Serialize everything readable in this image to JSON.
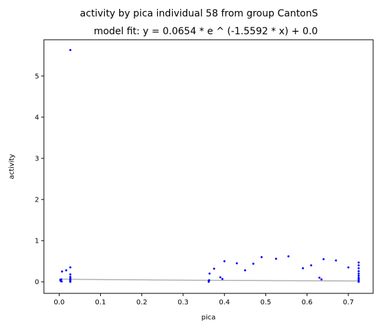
{
  "chart_data": {
    "type": "scatter",
    "title": "activity by pica individual 58 from group CantonS",
    "subtitle": "model fit: y = 0.0654 * e ^ (-1.5592 * x) + 0.0",
    "xlabel": "pica",
    "ylabel": "activity",
    "xlim": [
      -0.037,
      0.76
    ],
    "ylim": [
      -0.28,
      5.88
    ],
    "x_ticks": [
      0.0,
      0.1,
      0.2,
      0.3,
      0.4,
      0.5,
      0.6,
      0.7
    ],
    "x_tick_labels": [
      "0.0",
      "0.1",
      "0.2",
      "0.3",
      "0.4",
      "0.5",
      "0.6",
      "0.7"
    ],
    "y_ticks": [
      0,
      1,
      2,
      3,
      4,
      5
    ],
    "y_tick_labels": [
      "0",
      "1",
      "2",
      "3",
      "4",
      "5"
    ],
    "grid": false,
    "point_color": "#0000ff",
    "fit_color": "#b0b0b0",
    "fit": {
      "a": 0.0654,
      "b": -1.5592,
      "c": 0.0,
      "x_range": [
        0.0,
        0.725
      ]
    },
    "points": [
      {
        "x": 0.003,
        "y": 0.03
      },
      {
        "x": 0.003,
        "y": 0.05
      },
      {
        "x": 0.004,
        "y": 0.02
      },
      {
        "x": 0.005,
        "y": 0.06
      },
      {
        "x": 0.006,
        "y": 0.01
      },
      {
        "x": 0.007,
        "y": 0.25
      },
      {
        "x": 0.017,
        "y": 0.28
      },
      {
        "x": 0.027,
        "y": 5.63
      },
      {
        "x": 0.027,
        "y": 0.35
      },
      {
        "x": 0.027,
        "y": 0.18
      },
      {
        "x": 0.027,
        "y": 0.12
      },
      {
        "x": 0.027,
        "y": 0.08
      },
      {
        "x": 0.027,
        "y": 0.05
      },
      {
        "x": 0.027,
        "y": 0.03
      },
      {
        "x": 0.027,
        "y": 0.01
      },
      {
        "x": 0.027,
        "y": 0.0
      },
      {
        "x": 0.362,
        "y": 0.0
      },
      {
        "x": 0.362,
        "y": 0.02
      },
      {
        "x": 0.363,
        "y": 0.04
      },
      {
        "x": 0.364,
        "y": 0.2
      },
      {
        "x": 0.375,
        "y": 0.32
      },
      {
        "x": 0.39,
        "y": 0.11
      },
      {
        "x": 0.395,
        "y": 0.07
      },
      {
        "x": 0.4,
        "y": 0.5
      },
      {
        "x": 0.43,
        "y": 0.45
      },
      {
        "x": 0.45,
        "y": 0.28
      },
      {
        "x": 0.47,
        "y": 0.44
      },
      {
        "x": 0.49,
        "y": 0.6
      },
      {
        "x": 0.525,
        "y": 0.56
      },
      {
        "x": 0.555,
        "y": 0.62
      },
      {
        "x": 0.59,
        "y": 0.33
      },
      {
        "x": 0.61,
        "y": 0.4
      },
      {
        "x": 0.63,
        "y": 0.1
      },
      {
        "x": 0.635,
        "y": 0.06
      },
      {
        "x": 0.64,
        "y": 0.55
      },
      {
        "x": 0.67,
        "y": 0.52
      },
      {
        "x": 0.7,
        "y": 0.35
      },
      {
        "x": 0.725,
        "y": 0.47
      },
      {
        "x": 0.725,
        "y": 0.4
      },
      {
        "x": 0.725,
        "y": 0.33
      },
      {
        "x": 0.725,
        "y": 0.26
      },
      {
        "x": 0.725,
        "y": 0.2
      },
      {
        "x": 0.725,
        "y": 0.15
      },
      {
        "x": 0.725,
        "y": 0.1
      },
      {
        "x": 0.725,
        "y": 0.07
      },
      {
        "x": 0.725,
        "y": 0.04
      },
      {
        "x": 0.725,
        "y": 0.02
      },
      {
        "x": 0.725,
        "y": 0.0
      }
    ]
  }
}
